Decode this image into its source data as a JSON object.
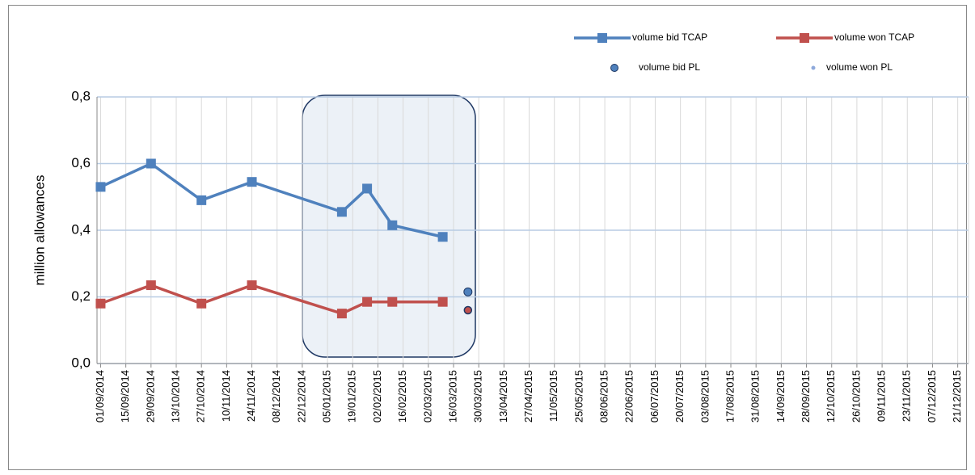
{
  "chart_data": {
    "type": "line",
    "y_label": "million allowances",
    "ylim": [
      0,
      0.8
    ],
    "yticks": [
      {
        "value": 0,
        "label": "0,0"
      },
      {
        "value": 0.2,
        "label": "0,2"
      },
      {
        "value": 0.4,
        "label": "0,4"
      },
      {
        "value": 0.6,
        "label": "0,6"
      },
      {
        "value": 0.8,
        "label": "0,8"
      }
    ],
    "xlim": [
      "30/08/2014",
      "27/12/2015"
    ],
    "xticks": [
      "01/09/2014",
      "15/09/2014",
      "29/09/2014",
      "13/10/2014",
      "27/10/2014",
      "10/11/2014",
      "24/11/2014",
      "08/12/2014",
      "22/12/2014",
      "05/01/2015",
      "19/01/2015",
      "02/02/2015",
      "16/02/2015",
      "02/03/2015",
      "16/03/2015",
      "30/03/2015",
      "13/04/2015",
      "27/04/2015",
      "11/05/2015",
      "25/05/2015",
      "08/06/2015",
      "22/06/2015",
      "06/07/2015",
      "20/07/2015",
      "03/08/2015",
      "17/08/2015",
      "31/08/2015",
      "14/09/2015",
      "28/09/2015",
      "12/10/2015",
      "26/10/2015",
      "09/11/2015",
      "23/11/2015",
      "07/12/2015",
      "21/12/2015"
    ],
    "grid": true,
    "legend": "top-right",
    "series": [
      {
        "name": "volume bid TCAP",
        "color": "#4f81bd",
        "style": "line-square",
        "x": [
          "01/09/2014",
          "29/09/2014",
          "27/10/2014",
          "24/11/2014",
          "13/01/2015",
          "27/01/2015",
          "10/02/2015",
          "10/03/2015"
        ],
        "values": [
          0.53,
          0.6,
          0.49,
          0.545,
          0.455,
          0.525,
          0.415,
          0.38
        ]
      },
      {
        "name": "volume won TCAP",
        "color": "#c0504d",
        "style": "line-square",
        "x": [
          "01/09/2014",
          "29/09/2014",
          "27/10/2014",
          "24/11/2014",
          "13/01/2015",
          "27/01/2015",
          "10/02/2015",
          "10/03/2015"
        ],
        "values": [
          0.18,
          0.235,
          0.18,
          0.235,
          0.15,
          0.185,
          0.185,
          0.185
        ]
      },
      {
        "name": "volume bid PL",
        "color": "#4f81bd",
        "style": "dot",
        "x": [
          "24/03/2015"
        ],
        "values": [
          0.215
        ]
      },
      {
        "name": "volume won PL",
        "color": "#c0504d",
        "style": "small-dot",
        "x": [
          "24/03/2015"
        ],
        "values": [
          0.16
        ]
      }
    ]
  }
}
